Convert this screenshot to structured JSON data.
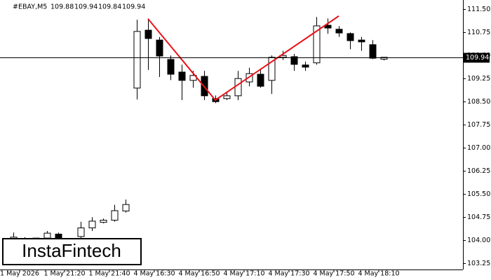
{
  "chart_data": {
    "type": "candlestick",
    "symbol": "#EBAY,M5",
    "watermark": "InstaFintech",
    "categories": [
      "1 May 2026",
      null,
      null,
      null,
      "1 May 21:20",
      null,
      null,
      null,
      "1 May 21:40",
      null,
      null,
      null,
      "4 May 16:30",
      null,
      null,
      null,
      "4 May 16:50",
      null,
      null,
      null,
      "4 May 17:10",
      null,
      null,
      null,
      "4 May 17:30",
      null,
      null,
      null,
      "4 May 17:50",
      null,
      null,
      null,
      "4 May 18:10",
      null
    ],
    "open": [
      104.05,
      104.0,
      103.98,
      104.07,
      104.2,
      103.98,
      104.12,
      104.4,
      104.58,
      104.65,
      104.95,
      108.94,
      110.82,
      110.5,
      109.87,
      109.46,
      109.19,
      109.32,
      108.6,
      108.6,
      108.69,
      109.14,
      109.39,
      109.19,
      109.94,
      109.96,
      109.69,
      109.76,
      110.98,
      110.85,
      110.71,
      110.5,
      110.35,
      109.88
    ],
    "high": [
      104.25,
      104.1,
      104.05,
      104.3,
      104.25,
      104.05,
      104.6,
      104.75,
      104.7,
      105.15,
      105.32,
      111.16,
      111.2,
      110.6,
      110.0,
      109.7,
      109.5,
      109.5,
      108.7,
      108.8,
      109.5,
      109.6,
      109.55,
      110.0,
      110.15,
      110.05,
      109.8,
      111.25,
      111.2,
      110.95,
      110.75,
      110.6,
      110.5,
      109.94
    ],
    "low": [
      103.9,
      103.9,
      103.9,
      103.9,
      103.9,
      103.92,
      103.95,
      104.3,
      104.55,
      104.6,
      104.9,
      108.57,
      109.53,
      109.3,
      109.2,
      108.55,
      108.95,
      108.55,
      108.45,
      108.55,
      108.55,
      109.0,
      108.95,
      108.75,
      109.85,
      109.5,
      109.5,
      109.7,
      110.7,
      110.6,
      110.2,
      110.15,
      109.88,
      109.84
    ],
    "close": [
      104.1,
      103.98,
      104.07,
      104.23,
      103.96,
      104.0,
      104.4,
      104.62,
      104.65,
      104.96,
      105.16,
      110.78,
      110.55,
      109.98,
      109.39,
      109.19,
      109.35,
      108.69,
      108.5,
      108.69,
      109.25,
      109.41,
      109.0,
      109.94,
      110.0,
      109.71,
      109.62,
      110.96,
      110.89,
      110.73,
      110.48,
      110.44,
      109.91,
      109.94
    ],
    "up_color": "#ffffff",
    "down_color": "#000000",
    "wick_color": "#000000",
    "pattern": {
      "color": "#e8141a",
      "x": [
        12,
        18,
        29
      ],
      "y": [
        111.19,
        108.55,
        111.28
      ]
    },
    "ylim": [
      103.05,
      111.8
    ],
    "yticks": [
      103.25,
      {
        "value": 104,
        "label": "104.00"
      },
      104.75,
      {
        "value": 105.5,
        "label": "105.50"
      },
      106.25,
      {
        "value": 107,
        "label": "107.00"
      },
      107.75,
      {
        "value": 108.5,
        "label": "108.50"
      },
      109.25,
      {
        "value": 110,
        "label": "110.00"
      },
      110.75,
      {
        "value": 111.5,
        "label": "111.50"
      }
    ],
    "grid": false
  }
}
